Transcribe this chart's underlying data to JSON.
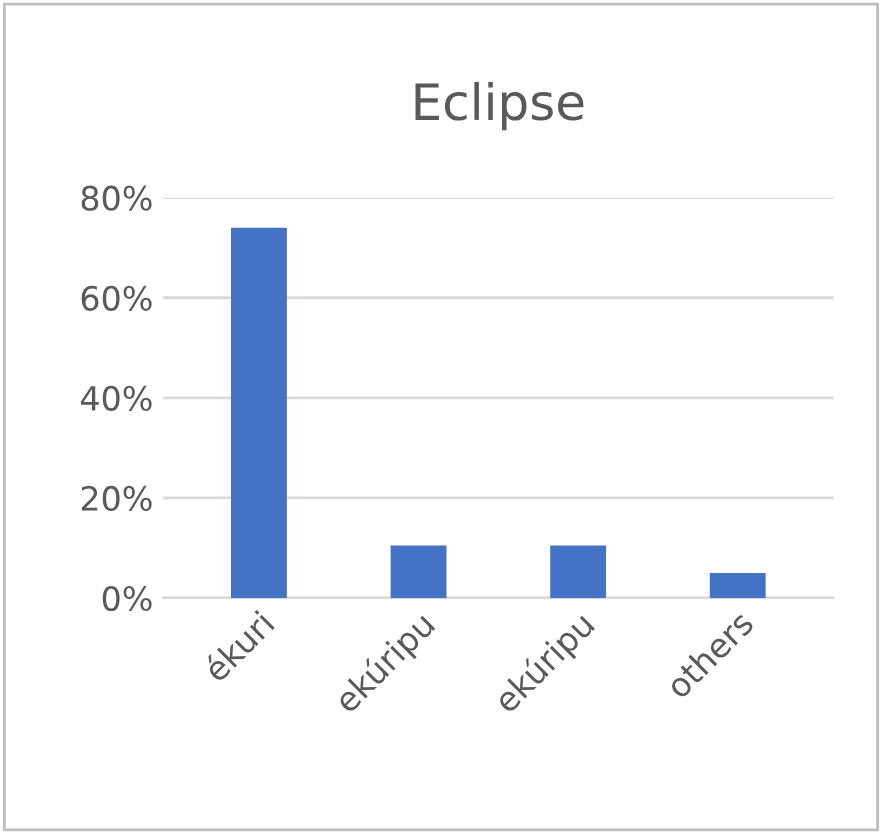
{
  "chart_data": {
    "type": "bar",
    "title": "Eclipse",
    "categories": [
      "ékuri",
      "ekúripu",
      "ekúripu",
      "others"
    ],
    "values": [
      74,
      10.5,
      10.5,
      5
    ],
    "color": "#4472c4",
    "ylim": [
      0,
      80
    ],
    "yticks": [
      {
        "value": 0,
        "label": "0%"
      },
      {
        "value": 20,
        "label": "20%"
      },
      {
        "value": 40,
        "label": "40%"
      },
      {
        "value": 60,
        "label": "60%"
      },
      {
        "value": 80,
        "label": "80%"
      }
    ],
    "grid": "y",
    "legend": false
  }
}
